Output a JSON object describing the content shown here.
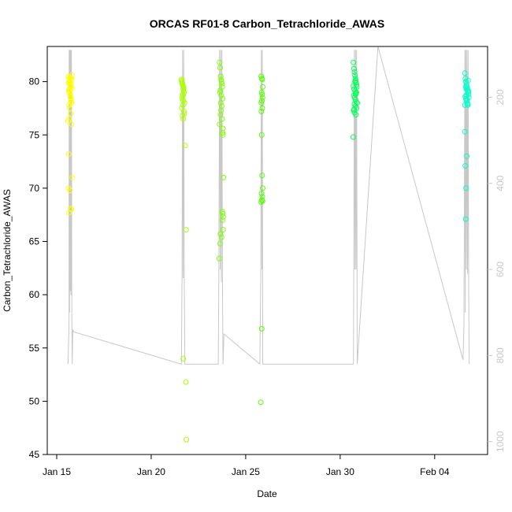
{
  "chart_data": {
    "type": "scatter",
    "title": "ORCAS RF01-8 Carbon_Tetrachloride_AWAS",
    "xlabel": "Date",
    "ylabel": "Carbon_Tetrachloride_AWAS",
    "x_ticks": [
      "Jan 15",
      "Jan 20",
      "Jan 25",
      "Jan 30",
      "Feb 04"
    ],
    "x_tick_days": [
      15,
      20,
      25,
      30,
      35
    ],
    "xlim_days": [
      14.5,
      37.8
    ],
    "ylim": [
      45,
      83.3
    ],
    "y_ticks": [
      45,
      50,
      55,
      60,
      65,
      70,
      75,
      80
    ],
    "y2_ticks": [
      200,
      400,
      600,
      800,
      1000
    ],
    "y2lim_reversed": [
      82,
      1030
    ],
    "grid": false,
    "colors": {
      "flight1": "#ffff00",
      "flight2": "#aaff00",
      "flight3": "#7fff00",
      "flight4": "#55ff00",
      "flight5": "#00ff55",
      "flight6": "#00ffcc",
      "altitude_line": "#c8c8c8",
      "frame": "#000000",
      "right_axis": "#c8c8c8"
    },
    "series": [
      {
        "color_key": "flight1",
        "x": [
          15.62,
          15.65,
          15.68,
          15.7,
          15.72,
          15.74,
          15.76,
          15.78,
          15.8,
          15.64,
          15.67,
          15.71,
          15.73,
          15.77,
          15.79,
          15.66,
          15.69,
          15.75,
          15.63,
          15.81,
          15.7,
          15.74,
          15.68,
          15.72,
          15.76,
          15.66,
          15.79,
          15.6,
          15.64,
          15.62,
          15.7,
          15.82,
          15.78,
          15.65,
          15.74,
          15.7
        ],
        "y": [
          80.5,
          80.2,
          80.0,
          79.8,
          79.6,
          79.5,
          80.3,
          80.1,
          79.4,
          79.2,
          79.0,
          78.8,
          78.5,
          78.3,
          78.0,
          77.8,
          77.5,
          77.0,
          79.9,
          80.6,
          80.4,
          79.7,
          79.3,
          78.6,
          78.1,
          76.5,
          76.0,
          76.3,
          73.2,
          70.0,
          69.8,
          71.0,
          68.0,
          67.7,
          68.1,
          79.1
        ]
      },
      {
        "color_key": "flight2",
        "x": [
          21.6,
          21.62,
          21.65,
          21.68,
          21.7,
          21.72,
          21.74,
          21.66,
          21.64,
          21.7,
          21.76,
          21.68,
          21.62,
          21.73,
          21.66,
          21.7,
          21.64,
          21.71,
          21.69,
          21.67,
          21.75,
          21.63,
          21.72,
          21.8,
          21.85,
          21.7,
          21.84,
          21.86
        ],
        "y": [
          80.2,
          80.0,
          79.8,
          79.6,
          79.4,
          79.2,
          79.0,
          78.8,
          78.5,
          78.2,
          78.0,
          77.8,
          77.5,
          77.2,
          76.8,
          76.5,
          79.9,
          79.5,
          78.7,
          78.3,
          77.0,
          80.1,
          79.3,
          74.0,
          66.1,
          54.0,
          51.8,
          46.4
        ]
      },
      {
        "color_key": "flight3",
        "x": [
          23.62,
          23.65,
          23.68,
          23.7,
          23.72,
          23.74,
          23.76,
          23.66,
          23.64,
          23.7,
          23.78,
          23.68,
          23.73,
          23.7,
          23.67,
          23.75,
          23.62,
          23.8,
          23.78,
          23.8,
          23.82,
          23.76,
          23.79,
          23.81,
          23.77,
          23.8,
          23.66,
          23.72,
          23.64,
          23.6
        ],
        "y": [
          81.8,
          81.3,
          80.5,
          80.2,
          80.0,
          79.8,
          79.5,
          79.2,
          79.0,
          78.7,
          78.4,
          78.0,
          77.7,
          77.3,
          76.9,
          76.5,
          76.0,
          75.6,
          75.2,
          75.0,
          71.0,
          67.8,
          67.6,
          67.3,
          67.0,
          66.1,
          65.7,
          65.4,
          64.8,
          63.4
        ]
      },
      {
        "color_key": "flight4",
        "x": [
          25.82,
          25.85,
          25.88,
          25.9,
          25.84,
          25.87,
          25.89,
          25.86,
          25.83,
          25.88,
          25.85,
          25.87,
          25.9,
          25.84,
          25.88,
          25.86,
          25.82,
          25.89,
          25.85,
          25.8,
          25.83
        ],
        "y": [
          80.5,
          80.3,
          80.2,
          79.5,
          79.0,
          78.8,
          78.5,
          78.2,
          78.0,
          77.5,
          75.0,
          71.2,
          70.0,
          69.5,
          69.2,
          68.9,
          68.7,
          68.8,
          56.8,
          49.9,
          77.2
        ]
      },
      {
        "color_key": "flight5",
        "x": [
          30.7,
          30.73,
          30.76,
          30.78,
          30.8,
          30.82,
          30.84,
          30.86,
          30.88,
          30.74,
          30.79,
          30.83,
          30.72,
          30.77,
          30.81,
          30.85,
          30.75,
          30.8,
          30.87,
          30.71,
          30.76,
          30.83,
          30.78,
          30.7,
          30.9,
          30.74,
          30.82,
          30.86,
          30.69
        ],
        "y": [
          81.8,
          81.2,
          80.9,
          80.6,
          80.3,
          80.1,
          79.9,
          79.7,
          79.5,
          79.3,
          79.1,
          78.9,
          78.7,
          78.5,
          78.3,
          78.1,
          77.9,
          77.7,
          77.5,
          77.3,
          77.1,
          76.9,
          80.0,
          79.6,
          78.0,
          77.4,
          78.8,
          79.0,
          74.8
        ]
      },
      {
        "color_key": "flight6",
        "x": [
          36.6,
          36.63,
          36.66,
          36.68,
          36.7,
          36.72,
          36.75,
          36.78,
          36.8,
          36.62,
          36.65,
          36.69,
          36.73,
          36.76,
          36.79,
          36.64,
          36.67,
          36.71,
          36.74,
          36.77,
          36.81,
          36.68,
          36.6,
          36.7,
          36.62,
          36.66,
          36.64,
          36.6
        ],
        "y": [
          80.8,
          80.3,
          80.0,
          79.8,
          79.6,
          79.4,
          79.2,
          79.0,
          78.8,
          78.6,
          78.4,
          78.2,
          78.0,
          77.8,
          79.1,
          79.5,
          78.7,
          78.3,
          77.9,
          80.1,
          78.5,
          79.3,
          75.3,
          73.0,
          72.1,
          70.0,
          67.1,
          77.8
        ]
      }
    ],
    "altitude_line": {
      "x": [
        15.6,
        15.65,
        15.66,
        15.68,
        15.7,
        15.72,
        15.74,
        15.76,
        15.78,
        15.8,
        15.82,
        15.85,
        15.9,
        21.6,
        21.63,
        21.66,
        21.69,
        21.72,
        21.75,
        21.78,
        21.8,
        23.55,
        23.58,
        23.62,
        23.65,
        23.68,
        23.71,
        23.74,
        23.77,
        23.8,
        23.85,
        25.75,
        25.8,
        25.83,
        25.86,
        25.88,
        25.9,
        30.7,
        30.72,
        30.75,
        30.78,
        30.81,
        30.84,
        30.87,
        30.9,
        32.0,
        36.5,
        36.55,
        36.6,
        36.62,
        36.65,
        36.68,
        36.71,
        36.74,
        36.77,
        36.8,
        36.83
      ],
      "y2": [
        820,
        730,
        90,
        700,
        90,
        650,
        90,
        660,
        90,
        720,
        820,
        740,
        745,
        820,
        620,
        90,
        620,
        90,
        610,
        820,
        820,
        820,
        620,
        90,
        600,
        90,
        630,
        90,
        620,
        820,
        750,
        820,
        600,
        90,
        600,
        90,
        820,
        820,
        600,
        90,
        600,
        90,
        600,
        90,
        820,
        60,
        810,
        730,
        90,
        700,
        90,
        600,
        90,
        610,
        90,
        650,
        820
      ]
    }
  }
}
